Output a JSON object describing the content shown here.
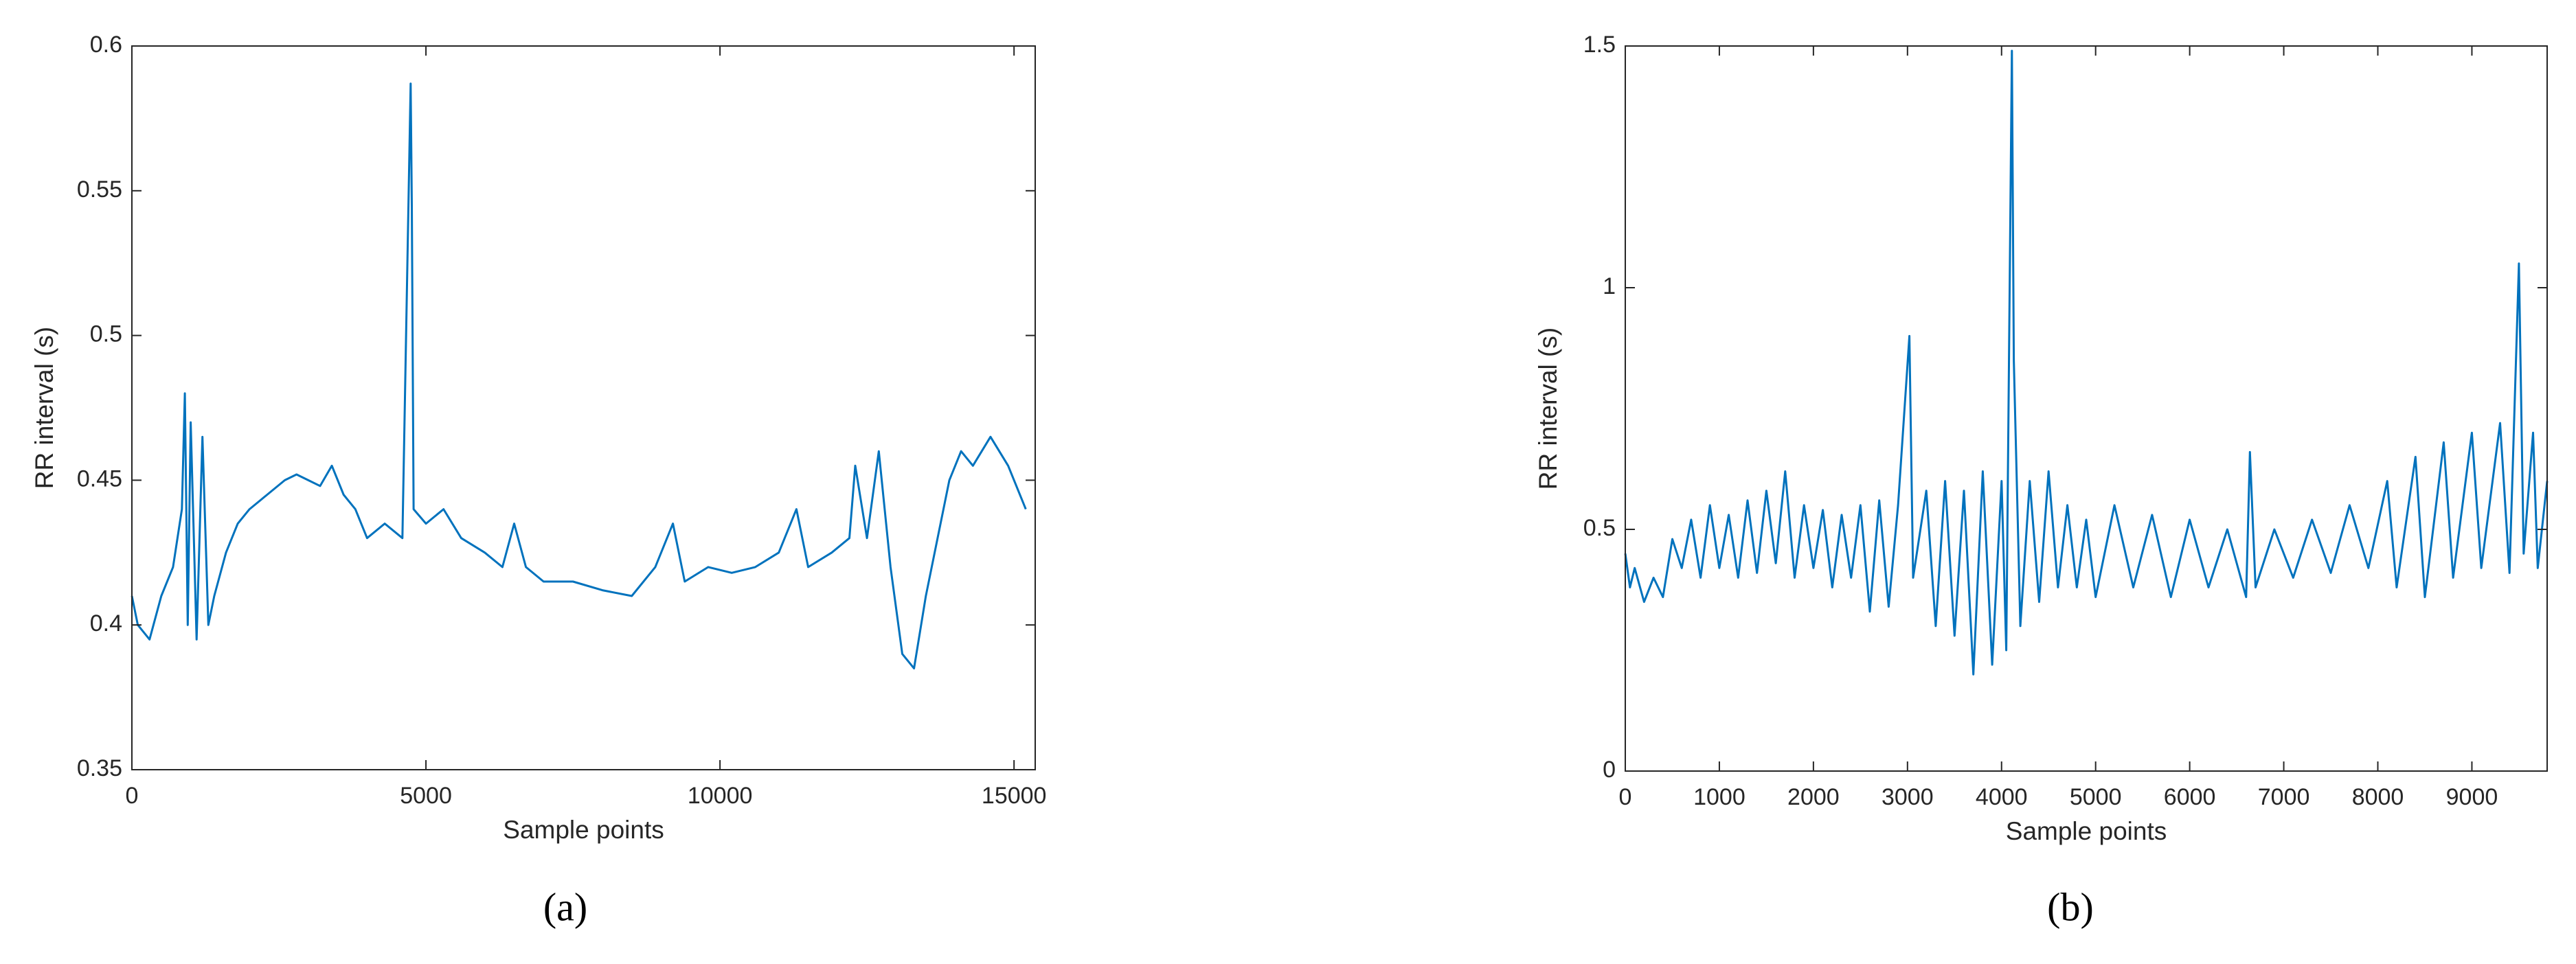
{
  "chart_data": [
    {
      "type": "line",
      "xlabel": "Sample points",
      "ylabel": "RR interval (s)",
      "caption": "(a)",
      "color": "#0072bd",
      "xlim": [
        0,
        15360
      ],
      "xticks": [
        0,
        5000,
        10000,
        15000
      ],
      "ylim": [
        0.35,
        0.6
      ],
      "yticks": [
        0.35,
        0.4,
        0.45,
        0.5,
        0.55,
        0.6
      ],
      "x": [
        0,
        100,
        300,
        500,
        700,
        850,
        900,
        950,
        1000,
        1100,
        1200,
        1300,
        1400,
        1600,
        1800,
        2000,
        2300,
        2600,
        2800,
        3000,
        3200,
        3400,
        3600,
        3800,
        4000,
        4300,
        4600,
        4740,
        4760,
        4790,
        5000,
        5300,
        5600,
        6000,
        6300,
        6500,
        6700,
        7000,
        7500,
        8000,
        8500,
        8900,
        9200,
        9400,
        9800,
        10200,
        10600,
        11000,
        11300,
        11500,
        11900,
        12200,
        12300,
        12500,
        12700,
        12900,
        13100,
        13300,
        13500,
        13700,
        13900,
        14100,
        14300,
        14600,
        14900,
        15200
      ],
      "values": [
        0.41,
        0.4,
        0.395,
        0.41,
        0.42,
        0.44,
        0.48,
        0.4,
        0.47,
        0.395,
        0.465,
        0.4,
        0.41,
        0.425,
        0.435,
        0.44,
        0.445,
        0.45,
        0.452,
        0.45,
        0.448,
        0.455,
        0.445,
        0.44,
        0.43,
        0.435,
        0.43,
        0.587,
        0.545,
        0.44,
        0.435,
        0.44,
        0.43,
        0.425,
        0.42,
        0.435,
        0.42,
        0.415,
        0.415,
        0.412,
        0.41,
        0.42,
        0.435,
        0.415,
        0.42,
        0.418,
        0.42,
        0.425,
        0.44,
        0.42,
        0.425,
        0.43,
        0.455,
        0.43,
        0.46,
        0.42,
        0.39,
        0.385,
        0.41,
        0.43,
        0.45,
        0.46,
        0.455,
        0.465,
        0.455,
        0.44
      ]
    },
    {
      "type": "line",
      "xlabel": "Sample points",
      "ylabel": "RR interval (s)",
      "caption": "(b)",
      "color": "#0072bd",
      "xlim": [
        0,
        9800
      ],
      "xticks": [
        0,
        1000,
        2000,
        3000,
        4000,
        5000,
        6000,
        7000,
        8000,
        9000
      ],
      "ylim": [
        0,
        1.5
      ],
      "yticks": [
        0,
        0.5,
        1,
        1.5
      ],
      "x": [
        0,
        50,
        100,
        200,
        300,
        400,
        500,
        600,
        700,
        800,
        900,
        1000,
        1100,
        1200,
        1300,
        1400,
        1500,
        1600,
        1700,
        1800,
        1900,
        2000,
        2100,
        2200,
        2300,
        2400,
        2500,
        2600,
        2700,
        2800,
        2900,
        3020,
        3060,
        3200,
        3300,
        3400,
        3500,
        3600,
        3700,
        3800,
        3900,
        4000,
        4050,
        4110,
        4130,
        4200,
        4300,
        4400,
        4500,
        4600,
        4700,
        4800,
        4900,
        5000,
        5200,
        5400,
        5600,
        5800,
        6000,
        6200,
        6400,
        6600,
        6640,
        6700,
        6900,
        7100,
        7300,
        7500,
        7700,
        7900,
        8100,
        8200,
        8400,
        8500,
        8700,
        8800,
        9000,
        9100,
        9300,
        9400,
        9500,
        9550,
        9650,
        9700,
        9800
      ],
      "values": [
        0.45,
        0.38,
        0.42,
        0.35,
        0.4,
        0.36,
        0.48,
        0.42,
        0.52,
        0.4,
        0.55,
        0.42,
        0.53,
        0.4,
        0.56,
        0.41,
        0.58,
        0.43,
        0.62,
        0.4,
        0.55,
        0.42,
        0.54,
        0.38,
        0.53,
        0.4,
        0.55,
        0.33,
        0.56,
        0.34,
        0.55,
        0.9,
        0.4,
        0.58,
        0.3,
        0.6,
        0.28,
        0.58,
        0.2,
        0.62,
        0.22,
        0.6,
        0.25,
        1.49,
        0.85,
        0.3,
        0.6,
        0.35,
        0.62,
        0.38,
        0.55,
        0.38,
        0.52,
        0.36,
        0.55,
        0.38,
        0.53,
        0.36,
        0.52,
        0.38,
        0.5,
        0.36,
        0.66,
        0.38,
        0.5,
        0.4,
        0.52,
        0.41,
        0.55,
        0.42,
        0.6,
        0.38,
        0.65,
        0.36,
        0.68,
        0.4,
        0.7,
        0.42,
        0.72,
        0.41,
        1.05,
        0.45,
        0.7,
        0.42,
        0.6
      ]
    }
  ]
}
